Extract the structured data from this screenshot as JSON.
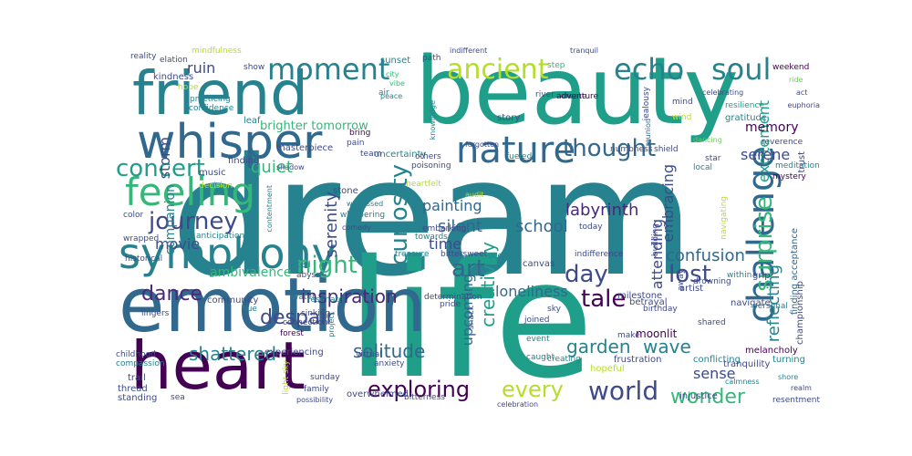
{
  "cloud": {
    "background": "#ffffff",
    "palette": [
      "#440154",
      "#482878",
      "#3e4a89",
      "#31688e",
      "#26828e",
      "#1f9e89",
      "#35b779",
      "#6ece58",
      "#b5de2b",
      "#fde725"
    ],
    "words": [
      {
        "t": "dream",
        "c": "#26828e"
      },
      {
        "t": "life",
        "c": "#1f9e89"
      },
      {
        "t": "beauty",
        "c": "#1f9e89"
      },
      {
        "t": "emotion",
        "c": "#31688e"
      },
      {
        "t": "heart",
        "c": "#440154"
      },
      {
        "t": "friend",
        "c": "#26828e"
      },
      {
        "t": "whisper",
        "c": "#31688e"
      },
      {
        "t": "symphony",
        "c": "#26828e"
      },
      {
        "t": "feeling",
        "c": "#35b779"
      },
      {
        "t": "nature",
        "c": "#31688e"
      },
      {
        "t": "challenge",
        "c": "#31688e"
      },
      {
        "t": "moment",
        "c": "#26828e"
      },
      {
        "t": "soul",
        "c": "#26828e"
      },
      {
        "t": "echo",
        "c": "#26828e"
      },
      {
        "t": "ancient",
        "c": "#b5de2b"
      },
      {
        "t": "concert",
        "c": "#1f9e89"
      },
      {
        "t": "journey",
        "c": "#3e4a89"
      },
      {
        "t": "thought",
        "c": "#31688e"
      },
      {
        "t": "night",
        "c": "#35b779"
      },
      {
        "t": "curiosity",
        "c": "#26828e"
      },
      {
        "t": "surprise",
        "c": "#35b779"
      },
      {
        "t": "art",
        "c": "#31688e"
      },
      {
        "t": "day",
        "c": "#3e4a89"
      },
      {
        "t": "lost",
        "c": "#3e4a89"
      },
      {
        "t": "dance",
        "c": "#482878"
      },
      {
        "t": "tale",
        "c": "#440154"
      },
      {
        "t": "inspiration",
        "c": "#482878"
      },
      {
        "t": "despair",
        "c": "#3e4a89"
      },
      {
        "t": "exploring",
        "c": "#440154"
      },
      {
        "t": "every",
        "c": "#b5de2b"
      },
      {
        "t": "world",
        "c": "#3e4a89"
      },
      {
        "t": "wonder",
        "c": "#35b779"
      },
      {
        "t": "solitude",
        "c": "#31688e"
      },
      {
        "t": "shattered",
        "c": "#26828e"
      },
      {
        "t": "creativity",
        "c": "#1f9e89"
      },
      {
        "t": "garden",
        "c": "#26828e"
      },
      {
        "t": "wave",
        "c": "#26828e"
      },
      {
        "t": "confusion",
        "c": "#31688e"
      },
      {
        "t": "reflecting",
        "c": "#26828e"
      },
      {
        "t": "serenity",
        "c": "#3e4a89"
      },
      {
        "t": "silent",
        "c": "#31688e"
      },
      {
        "t": "painting",
        "c": "#31688e"
      },
      {
        "t": "school",
        "c": "#31688e"
      },
      {
        "t": "labyrinth",
        "c": "#482878"
      },
      {
        "t": "attending",
        "c": "#3e4a89"
      },
      {
        "t": "upcoming",
        "c": "#31688e"
      },
      {
        "t": "loneliness",
        "c": "#31688e"
      },
      {
        "t": "time",
        "c": "#3e4a89"
      },
      {
        "t": "movie",
        "c": "#3e4a89"
      },
      {
        "t": "quiet",
        "c": "#35b779"
      },
      {
        "t": "ruin",
        "c": "#3e4a89"
      },
      {
        "t": "storm",
        "c": "#3e4a89"
      },
      {
        "t": "companion",
        "c": "#26828e"
      },
      {
        "t": "embracing",
        "c": "#3e4a89"
      },
      {
        "t": "excitement",
        "c": "#1f9e89"
      },
      {
        "t": "serene",
        "c": "#3e4a89"
      },
      {
        "t": "memory",
        "c": "#440154"
      },
      {
        "t": "sense",
        "c": "#3e4a89"
      },
      {
        "t": "ambivalence",
        "c": "#35b779"
      },
      {
        "t": "brighter tomorrow",
        "c": "#35b779"
      },
      {
        "t": "mindfulness",
        "c": "#b5de2b"
      },
      {
        "t": "elation",
        "c": "#3e4a89"
      },
      {
        "t": "reality",
        "c": "#3e4a89"
      },
      {
        "t": "kindness",
        "c": "#3e4a89"
      },
      {
        "t": "hope",
        "c": "#b5de2b"
      },
      {
        "t": "practicing",
        "c": "#26828e"
      },
      {
        "t": "confidence",
        "c": "#26828e"
      },
      {
        "t": "show",
        "c": "#3e4a89"
      },
      {
        "t": "leaf",
        "c": "#26828e"
      },
      {
        "t": "sunset",
        "c": "#26828e"
      },
      {
        "t": "city",
        "c": "#35b779"
      },
      {
        "t": "vibe",
        "c": "#35b779"
      },
      {
        "t": "air",
        "c": "#26828e"
      },
      {
        "t": "peace",
        "c": "#26828e"
      },
      {
        "t": "path",
        "c": "#3e4a89"
      },
      {
        "t": "indifferent",
        "c": "#3e4a89"
      },
      {
        "t": "step",
        "c": "#35b779"
      },
      {
        "t": "tranquil",
        "c": "#3e4a89"
      },
      {
        "t": "river",
        "c": "#3e4a89"
      },
      {
        "t": "create",
        "c": "#3e4a89"
      },
      {
        "t": "adventure",
        "c": "#440154"
      },
      {
        "t": "knowledge",
        "c": "#26828e"
      },
      {
        "t": "jealousy",
        "c": "#3e4a89"
      },
      {
        "t": "reunion",
        "c": "#31688e"
      },
      {
        "t": "mind",
        "c": "#3e4a89"
      },
      {
        "t": "resilience",
        "c": "#1f9e89"
      },
      {
        "t": "gratitude",
        "c": "#26828e"
      },
      {
        "t": "celebrating",
        "c": "#3e4a89"
      },
      {
        "t": "wind",
        "c": "#b5de2b"
      },
      {
        "t": "weekend",
        "c": "#440154"
      },
      {
        "t": "ride",
        "c": "#6ece58"
      },
      {
        "t": "act",
        "c": "#3e4a89"
      },
      {
        "t": "euphoria",
        "c": "#3e4a89"
      },
      {
        "t": "dancing",
        "c": "#6ece58"
      },
      {
        "t": "numbness",
        "c": "#3e4a89"
      },
      {
        "t": "shield",
        "c": "#3e4a89"
      },
      {
        "t": "star",
        "c": "#3e4a89"
      },
      {
        "t": "local",
        "c": "#26828e"
      },
      {
        "t": "reverence",
        "c": "#3e4a89"
      },
      {
        "t": "meditation",
        "c": "#26828e"
      },
      {
        "t": "mystery",
        "c": "#440154"
      },
      {
        "t": "trust",
        "c": "#3e4a89"
      },
      {
        "t": "story",
        "c": "#3e4a89"
      },
      {
        "t": "forgotten",
        "c": "#3e4a89"
      },
      {
        "t": "uncertainty",
        "c": "#26828e"
      },
      {
        "t": "others",
        "c": "#3e4a89"
      },
      {
        "t": "poisoning",
        "c": "#3e4a89"
      },
      {
        "t": "fueled",
        "c": "#26828e"
      },
      {
        "t": "heartfelt",
        "c": "#b5de2b"
      },
      {
        "t": "audit",
        "c": "#b5de2b"
      },
      {
        "t": "bring",
        "c": "#440154"
      },
      {
        "t": "pain",
        "c": "#3e4a89"
      },
      {
        "t": "team",
        "c": "#3e4a89"
      },
      {
        "t": "masterpiece",
        "c": "#3e4a89"
      },
      {
        "t": "shadow",
        "c": "#3e4a89"
      },
      {
        "t": "stone",
        "c": "#3e4a89"
      },
      {
        "t": "witnessed",
        "c": "#26828e"
      },
      {
        "t": "whispering",
        "c": "#26828e"
      },
      {
        "t": "comedy",
        "c": "#3e4a89"
      },
      {
        "t": "embarking",
        "c": "#3e4a89"
      },
      {
        "t": "towards",
        "c": "#26828e"
      },
      {
        "t": "today",
        "c": "#3e4a89"
      },
      {
        "t": "building",
        "c": "#3e4a89"
      },
      {
        "t": "navigating",
        "c": "#b5de2b"
      },
      {
        "t": "finding acceptance",
        "c": "#31688e"
      },
      {
        "t": "finding",
        "c": "#3e4a89"
      },
      {
        "t": "music",
        "c": "#3e4a89"
      },
      {
        "t": "decision",
        "c": "#b5de2b"
      },
      {
        "t": "color",
        "c": "#3e4a89"
      },
      {
        "t": "wrapped",
        "c": "#3e4a89"
      },
      {
        "t": "anticipation",
        "c": "#26828e"
      },
      {
        "t": "historical",
        "c": "#3e4a89"
      },
      {
        "t": "contentment",
        "c": "#26828e"
      },
      {
        "t": "lingers",
        "c": "#3e4a89"
      },
      {
        "t": "community",
        "c": "#3e4a89"
      },
      {
        "t": "hue",
        "c": "#26828e"
      },
      {
        "t": "tell",
        "c": "#26828e"
      },
      {
        "t": "abyss",
        "c": "#3e4a89"
      },
      {
        "t": "resonate",
        "c": "#26828e"
      },
      {
        "t": "water",
        "c": "#26828e"
      },
      {
        "t": "sinking",
        "c": "#3e4a89"
      },
      {
        "t": "connection",
        "c": "#3e4a89"
      },
      {
        "t": "forest",
        "c": "#440154"
      },
      {
        "t": "project",
        "c": "#26828e"
      },
      {
        "t": "determination",
        "c": "#3e4a89"
      },
      {
        "t": "treasure",
        "c": "#26828e"
      },
      {
        "t": "bittersweet",
        "c": "#3e4a89"
      },
      {
        "t": "ocean",
        "c": "#26828e"
      },
      {
        "t": "canvas",
        "c": "#3e4a89"
      },
      {
        "t": "indifference",
        "c": "#3e4a89"
      },
      {
        "t": "betrayal",
        "c": "#3e4a89"
      },
      {
        "t": "milestone",
        "c": "#3e4a89"
      },
      {
        "t": "birthday",
        "c": "#3e4a89"
      },
      {
        "t": "make",
        "c": "#3e4a89"
      },
      {
        "t": "moonlit",
        "c": "#440154"
      },
      {
        "t": "frustration",
        "c": "#3e4a89"
      },
      {
        "t": "hopeful",
        "c": "#b5de2b"
      },
      {
        "t": "pride",
        "c": "#3e4a89"
      },
      {
        "t": "snack",
        "c": "#3e4a89"
      },
      {
        "t": "sky",
        "c": "#3e4a89"
      },
      {
        "t": "joined",
        "c": "#3e4a89"
      },
      {
        "t": "event",
        "c": "#26828e"
      },
      {
        "t": "caught",
        "c": "#26828e"
      },
      {
        "t": "creating",
        "c": "#26828e"
      },
      {
        "t": "drowning",
        "c": "#3e4a89"
      },
      {
        "t": "conflicting",
        "c": "#26828e"
      },
      {
        "t": "injustice",
        "c": "#3e4a89"
      },
      {
        "t": "away",
        "c": "#3e4a89"
      },
      {
        "t": "artist",
        "c": "#3e4a89"
      },
      {
        "t": "shared",
        "c": "#3e4a89"
      },
      {
        "t": "navigate",
        "c": "#3e4a89"
      },
      {
        "t": "within",
        "c": "#26828e"
      },
      {
        "t": "grip",
        "c": "#3e4a89"
      },
      {
        "t": "personal",
        "c": "#26828e"
      },
      {
        "t": "championship",
        "c": "#3e4a89"
      },
      {
        "t": "melancholy",
        "c": "#440154"
      },
      {
        "t": "tranquility",
        "c": "#3e4a89"
      },
      {
        "t": "turning",
        "c": "#26828e"
      },
      {
        "t": "calmness",
        "c": "#26828e"
      },
      {
        "t": "shore",
        "c": "#26828e"
      },
      {
        "t": "realm",
        "c": "#3e4a89"
      },
      {
        "t": "resentment",
        "c": "#3e4a89"
      },
      {
        "t": "childhood",
        "c": "#3e4a89"
      },
      {
        "t": "compassion",
        "c": "#26828e"
      },
      {
        "t": "trail",
        "c": "#3e4a89"
      },
      {
        "t": "thread",
        "c": "#3e4a89"
      },
      {
        "t": "standing",
        "c": "#3e4a89"
      },
      {
        "t": "sea",
        "c": "#3e4a89"
      },
      {
        "t": "sunday",
        "c": "#3e4a89"
      },
      {
        "t": "family",
        "c": "#3e4a89"
      },
      {
        "t": "possibility",
        "c": "#3e4a89"
      },
      {
        "t": "experiencing",
        "c": "#3e4a89"
      },
      {
        "t": "overwhelmed",
        "c": "#3e4a89"
      },
      {
        "t": "virtual",
        "c": "#3e4a89"
      },
      {
        "t": "anxiety",
        "c": "#3e4a89"
      },
      {
        "t": "bitterness",
        "c": "#3e4a89"
      },
      {
        "t": "celebration",
        "c": "#3e4a89"
      },
      {
        "t": "light sky",
        "c": "#b5de2b"
      }
    ]
  }
}
